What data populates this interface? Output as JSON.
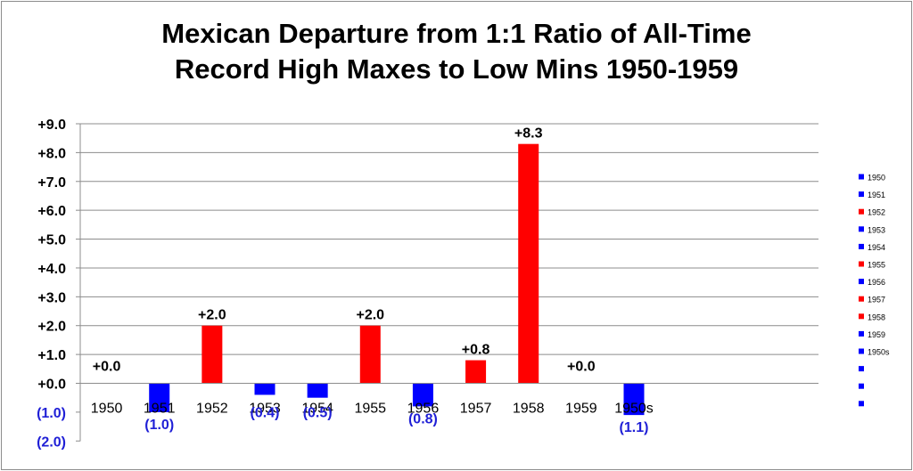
{
  "chart_data": {
    "type": "bar",
    "title_lines": [
      "Mexican Departure from 1:1 Ratio of All-Time",
      "Record High Maxes to Low Mins 1950-1959"
    ],
    "categories": [
      "1950",
      "1951",
      "1952",
      "1953",
      "1954",
      "1955",
      "1956",
      "1957",
      "1958",
      "1959",
      "1950s"
    ],
    "values": [
      0.0,
      -1.0,
      2.0,
      -0.4,
      -0.5,
      2.0,
      -0.8,
      0.8,
      8.3,
      0.0,
      -1.1
    ],
    "value_labels": [
      "+0.0",
      "(1.0)",
      "+2.0",
      "(0.4)",
      "(0.5)",
      "+2.0",
      "(0.8)",
      "+0.8",
      "+8.3",
      "+0.0",
      "(1.1)"
    ],
    "ylim": [
      -2.0,
      9.0
    ],
    "yticks": [
      9,
      8,
      7,
      6,
      5,
      4,
      3,
      2,
      1,
      0,
      -1,
      -2
    ],
    "ytick_labels": [
      "+9.0",
      "+8.0",
      "+7.0",
      "+6.0",
      "+5.0",
      "+4.0",
      "+3.0",
      "+2.0",
      "+1.0",
      "+0.0",
      "(1.0)",
      "(2.0)"
    ],
    "empty_slots": 3,
    "grid": true,
    "legend": {
      "position": "right",
      "entries": [
        "1950",
        "1951",
        "1952",
        "1953",
        "1954",
        "1955",
        "1956",
        "1957",
        "1958",
        "1959",
        "1950s",
        "",
        "",
        ""
      ]
    },
    "colors": {
      "positive": "#ff0000",
      "negative": "#0000ff",
      "positive_label": "#000000",
      "negative_label": "#1f1fd6",
      "negative_tick_label": "#1f1fd6"
    }
  }
}
